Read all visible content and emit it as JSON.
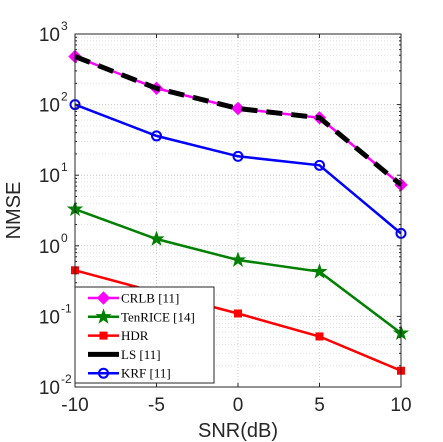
{
  "chart_data": {
    "type": "line",
    "title": "",
    "xlabel": "SNR(dB)",
    "ylabel": "NMSE",
    "yscale": "log",
    "x": [
      -10,
      -5,
      0,
      5,
      10
    ],
    "xlim": [
      -10,
      10
    ],
    "ylim": [
      0.01,
      1000
    ],
    "x_ticks": [
      "-10",
      "-5",
      "0",
      "5",
      "10"
    ],
    "y_ticks": [
      {
        "base": "10",
        "exp": "-2"
      },
      {
        "base": "10",
        "exp": "-1"
      },
      {
        "base": "10",
        "exp": "0"
      },
      {
        "base": "10",
        "exp": "1"
      },
      {
        "base": "10",
        "exp": "2"
      },
      {
        "base": "10",
        "exp": "3"
      }
    ],
    "grid": true,
    "legend_position": "bottom-left",
    "series": [
      {
        "name": "CRLB [11]",
        "color": "#ff00ff",
        "marker": "diamond",
        "style": "solid",
        "values": [
          480,
          170,
          88,
          65,
          7.3
        ]
      },
      {
        "name": "TenRICE [14]",
        "color": "#008000",
        "marker": "star",
        "style": "solid",
        "values": [
          3.3,
          1.25,
          0.63,
          0.43,
          0.058
        ]
      },
      {
        "name": "HDR",
        "color": "#ff0000",
        "marker": "square",
        "style": "solid",
        "values": [
          0.45,
          0.22,
          0.11,
          0.052,
          0.017
        ]
      },
      {
        "name": "LS [11]",
        "color": "#000000",
        "marker": "none",
        "style": "dashed",
        "values": [
          480,
          170,
          88,
          65,
          7.3
        ]
      },
      {
        "name": "KRF [11]",
        "color": "#0000ff",
        "marker": "circle",
        "style": "solid",
        "values": [
          100,
          36,
          18.5,
          13.8,
          1.5
        ]
      }
    ]
  }
}
